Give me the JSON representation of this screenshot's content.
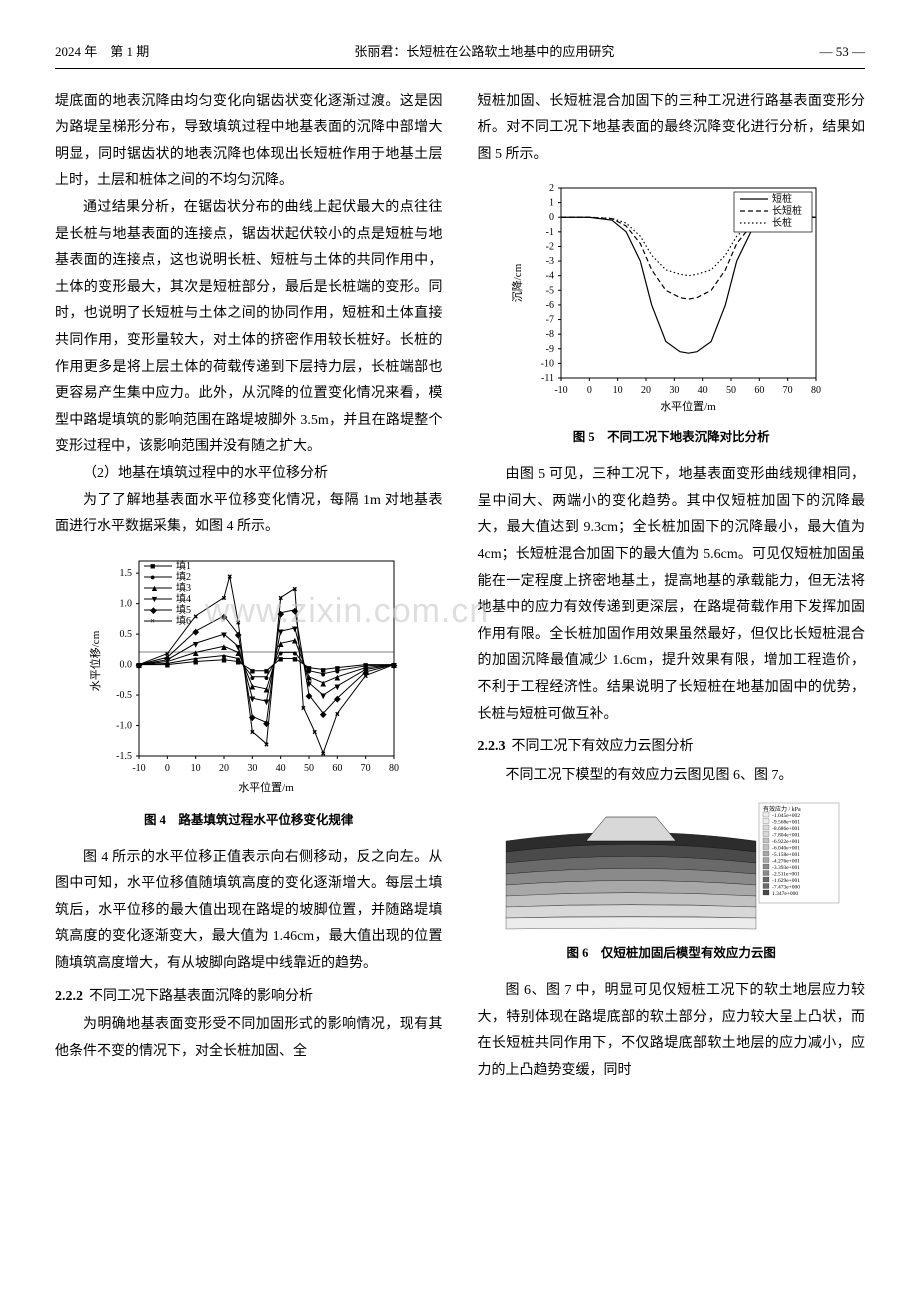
{
  "header": {
    "left": "2024 年　第 1 期",
    "center": "张丽君：长短桩在公路软土地基中的应用研究",
    "right": "— 53 —"
  },
  "left_col": {
    "p1": "堤底面的地表沉降由均匀变化向锯齿状变化逐渐过渡。这是因为路堤呈梯形分布，导致填筑过程中地基表面的沉降中部增大明显，同时锯齿状的地表沉降也体现出长短桩作用于地基土层上时，土层和桩体之间的不均匀沉降。",
    "p2": "通过结果分析，在锯齿状分布的曲线上起伏最大的点往往是长桩与地基表面的连接点，锯齿状起伏较小的点是短桩与地基表面的连接点，这也说明长桩、短桩与土体的共同作用中，土体的变形最大，其次是短桩部分，最后是长桩端的变形。同时，也说明了长短桩与土体之间的协同作用，短桩和土体直接共同作用，变形量较大，对土体的挤密作用较长桩好。长桩的作用更多是将上层土体的荷载传递到下层持力层，长桩端部也更容易产生集中应力。此外，从沉降的位置变化情况来看，模型中路堤填筑的影响范围在路堤坡脚外 3.5m，并且在路堤整个变形过程中，该影响范围并没有随之扩大。",
    "p3_label": "（2）地基在填筑过程中的水平位移分析",
    "p3": "为了了解地基表面水平位移变化情况，每隔 1m 对地基表面进行水平数据采集，如图 4 所示。",
    "fig4_caption": "图 4　路基填筑过程水平位移变化规律",
    "p4": "图 4 所示的水平位移正值表示向右侧移动，反之向左。从图中可知，水平位移值随填筑高度的变化逐渐增大。每层土填筑后，水平位移的最大值出现在路堤的坡脚位置，并随路堤填筑高度的变化逐渐变大，最大值为 1.46cm，最大值出现的位置随填筑高度增大，有从坡脚向路堤中线靠近的趋势。",
    "sec222_num": "2.2.2",
    "sec222_title": "不同工况下路基表面沉降的影响分析",
    "p5": "为明确地基表面变形受不同加固形式的影响情况，现有其他条件不变的情况下，对全长桩加固、全",
    "watermark": "www.zixin.com.cn"
  },
  "right_col": {
    "p1": "短桩加固、长短桩混合加固下的三种工况进行路基表面变形分析。对不同工况下地基表面的最终沉降变化进行分析，结果如图 5 所示。",
    "fig5_caption": "图 5　不同工况下地表沉降对比分析",
    "p2": "由图 5 可见，三种工况下，地基表面变形曲线规律相同，呈中间大、两端小的变化趋势。其中仅短桩加固下的沉降最大，最大值达到 9.3cm；全长桩加固下的沉降最小，最大值为 4cm；长短桩混合加固下的最大值为 5.6cm。可见仅短桩加固虽能在一定程度上挤密地基土，提高地基的承载能力，但无法将地基中的应力有效传递到更深层，在路堤荷载作用下发挥加固作用有限。全长桩加固作用效果虽然最好，但仅比长短桩混合的加固沉降最值减少 1.6cm，提升效果有限，增加工程造价，不利于工程经济性。结果说明了长短桩在地基加固中的优势，长桩与短桩可做互补。",
    "sec223_num": "2.2.3",
    "sec223_title": "不同工况下有效应力云图分析",
    "p3": "不同工况下模型的有效应力云图见图 6、图 7。",
    "fig6_caption": "图 6　仅短桩加固后模型有效应力云图",
    "p4": "图 6、图 7 中，明显可见仅短桩工况下的软土地层应力较大，特别体现在路堤底部的软土部分，应力较大呈上凸状，而在长短桩共同作用下，不仅路堤底部软土地层的应力减小，应力的上凸趋势变缓，同时"
  },
  "fig4": {
    "type": "line-scatter",
    "xlabel": "水平位置/m",
    "ylabel": "水平位移/cm",
    "xlim": [
      -10,
      80
    ],
    "ylim": [
      -1.5,
      1.7
    ],
    "xticks": [
      -10,
      0,
      10,
      20,
      30,
      40,
      50,
      60,
      70,
      80
    ],
    "yticks": [
      -1.5,
      -1.0,
      -0.5,
      0.0,
      0.5,
      1.0,
      1.5
    ],
    "legend": [
      "填1",
      "填2",
      "填3",
      "填4",
      "填5",
      "填6"
    ],
    "markers": [
      "■",
      "●",
      "▲",
      "▼",
      "◆",
      "×"
    ],
    "series_color": "#000000",
    "background_color": "#ffffff",
    "border_color": "#000000",
    "series": {
      "fill1": [
        [
          -10,
          0
        ],
        [
          0,
          0
        ],
        [
          10,
          0.05
        ],
        [
          20,
          0.08
        ],
        [
          25,
          0.05
        ],
        [
          30,
          -0.1
        ],
        [
          35,
          -0.1
        ],
        [
          40,
          0.1
        ],
        [
          45,
          0.1
        ],
        [
          50,
          -0.05
        ],
        [
          55,
          -0.08
        ],
        [
          60,
          -0.05
        ],
        [
          70,
          0
        ],
        [
          80,
          0
        ]
      ],
      "fill2": [
        [
          -10,
          0
        ],
        [
          0,
          0.02
        ],
        [
          10,
          0.1
        ],
        [
          20,
          0.15
        ],
        [
          25,
          0.1
        ],
        [
          30,
          -0.2
        ],
        [
          35,
          -0.2
        ],
        [
          40,
          0.2
        ],
        [
          45,
          0.2
        ],
        [
          50,
          -0.1
        ],
        [
          55,
          -0.15
        ],
        [
          60,
          -0.1
        ],
        [
          70,
          -0.02
        ],
        [
          80,
          0
        ]
      ],
      "fill3": [
        [
          -10,
          0
        ],
        [
          0,
          0.05
        ],
        [
          10,
          0.2
        ],
        [
          20,
          0.3
        ],
        [
          25,
          0.2
        ],
        [
          30,
          -0.35
        ],
        [
          35,
          -0.4
        ],
        [
          40,
          0.35
        ],
        [
          45,
          0.4
        ],
        [
          50,
          -0.2
        ],
        [
          55,
          -0.3
        ],
        [
          60,
          -0.2
        ],
        [
          70,
          -0.05
        ],
        [
          80,
          0
        ]
      ],
      "fill4": [
        [
          -10,
          0
        ],
        [
          0,
          0.08
        ],
        [
          10,
          0.35
        ],
        [
          20,
          0.5
        ],
        [
          25,
          0.3
        ],
        [
          30,
          -0.55
        ],
        [
          35,
          -0.6
        ],
        [
          40,
          0.55
        ],
        [
          45,
          0.6
        ],
        [
          50,
          -0.3
        ],
        [
          55,
          -0.5
        ],
        [
          60,
          -0.35
        ],
        [
          70,
          -0.08
        ],
        [
          80,
          0
        ]
      ],
      "fill5": [
        [
          -10,
          0
        ],
        [
          0,
          0.12
        ],
        [
          10,
          0.55
        ],
        [
          20,
          0.8
        ],
        [
          25,
          0.5
        ],
        [
          30,
          -0.85
        ],
        [
          35,
          -0.95
        ],
        [
          40,
          0.85
        ],
        [
          45,
          0.9
        ],
        [
          50,
          -0.5
        ],
        [
          55,
          -0.8
        ],
        [
          60,
          -0.55
        ],
        [
          70,
          -0.12
        ],
        [
          80,
          0
        ]
      ],
      "fill6": [
        [
          -10,
          0
        ],
        [
          0,
          0.18
        ],
        [
          10,
          0.8
        ],
        [
          20,
          1.1
        ],
        [
          22,
          1.45
        ],
        [
          25,
          0.7
        ],
        [
          30,
          -1.1
        ],
        [
          35,
          -1.3
        ],
        [
          40,
          1.1
        ],
        [
          45,
          1.25
        ],
        [
          48,
          -0.7
        ],
        [
          52,
          -1.1
        ],
        [
          55,
          -1.45
        ],
        [
          60,
          -0.8
        ],
        [
          70,
          -0.18
        ],
        [
          80,
          0
        ]
      ]
    }
  },
  "fig5": {
    "type": "line",
    "xlabel": "水平位置/m",
    "ylabel": "沉降/cm",
    "xlim": [
      -10,
      80
    ],
    "ylim": [
      -11,
      2
    ],
    "xticks": [
      -10,
      0,
      10,
      20,
      30,
      40,
      50,
      60,
      70,
      80
    ],
    "yticks": [
      2,
      1,
      0,
      -1,
      -2,
      -3,
      -4,
      -5,
      -6,
      -7,
      -8,
      -9,
      -10,
      -11
    ],
    "legend": [
      "短桩",
      "长短桩",
      "长桩"
    ],
    "line_styles": [
      "solid",
      "dashed",
      "dotted"
    ],
    "series_color": "#000000",
    "background_color": "#ffffff",
    "border_color": "#000000",
    "series": {
      "short": [
        [
          -10,
          0
        ],
        [
          0,
          0
        ],
        [
          8,
          -0.2
        ],
        [
          13,
          -1
        ],
        [
          18,
          -3
        ],
        [
          22,
          -6
        ],
        [
          27,
          -8.5
        ],
        [
          32,
          -9.2
        ],
        [
          35,
          -9.3
        ],
        [
          38,
          -9.2
        ],
        [
          43,
          -8.5
        ],
        [
          48,
          -6
        ],
        [
          52,
          -3
        ],
        [
          57,
          -1
        ],
        [
          62,
          -0.2
        ],
        [
          70,
          0
        ],
        [
          80,
          0
        ]
      ],
      "mix": [
        [
          -10,
          0
        ],
        [
          0,
          0
        ],
        [
          8,
          -0.1
        ],
        [
          13,
          -0.6
        ],
        [
          18,
          -1.8
        ],
        [
          22,
          -3.6
        ],
        [
          27,
          -5
        ],
        [
          32,
          -5.5
        ],
        [
          35,
          -5.6
        ],
        [
          38,
          -5.5
        ],
        [
          43,
          -5
        ],
        [
          48,
          -3.6
        ],
        [
          52,
          -1.8
        ],
        [
          57,
          -0.6
        ],
        [
          62,
          -0.1
        ],
        [
          70,
          0
        ],
        [
          80,
          0
        ]
      ],
      "long": [
        [
          -10,
          0
        ],
        [
          0,
          0
        ],
        [
          8,
          -0.08
        ],
        [
          13,
          -0.4
        ],
        [
          18,
          -1.3
        ],
        [
          22,
          -2.6
        ],
        [
          27,
          -3.6
        ],
        [
          32,
          -3.9
        ],
        [
          35,
          -4.0
        ],
        [
          38,
          -3.9
        ],
        [
          43,
          -3.6
        ],
        [
          48,
          -2.6
        ],
        [
          52,
          -1.3
        ],
        [
          57,
          -0.4
        ],
        [
          62,
          -0.08
        ],
        [
          70,
          0
        ],
        [
          80,
          0
        ]
      ]
    }
  },
  "fig6": {
    "type": "contour-image",
    "legend_title": "有效应力 / kPa",
    "legend_values": [
      "-1.045e+002",
      "-9.568e+001",
      "-8.686e+001",
      "-7.804e+001",
      "-6.922e+001",
      "-6.040e+001",
      "-5.158e+001",
      "-4.276e+001",
      "-3.393e+001",
      "-2.511e+001",
      "-1.629e+001",
      "-7.473e+000",
      "1.347e+000"
    ],
    "layer_colors": [
      "#2c2c2c",
      "#4a4a4a",
      "#6a6a6a",
      "#8a8a8a",
      "#a8a8a8",
      "#c2c2c2",
      "#d8d8d8",
      "#ececec"
    ],
    "embankment_color": "#d8d8d8"
  }
}
